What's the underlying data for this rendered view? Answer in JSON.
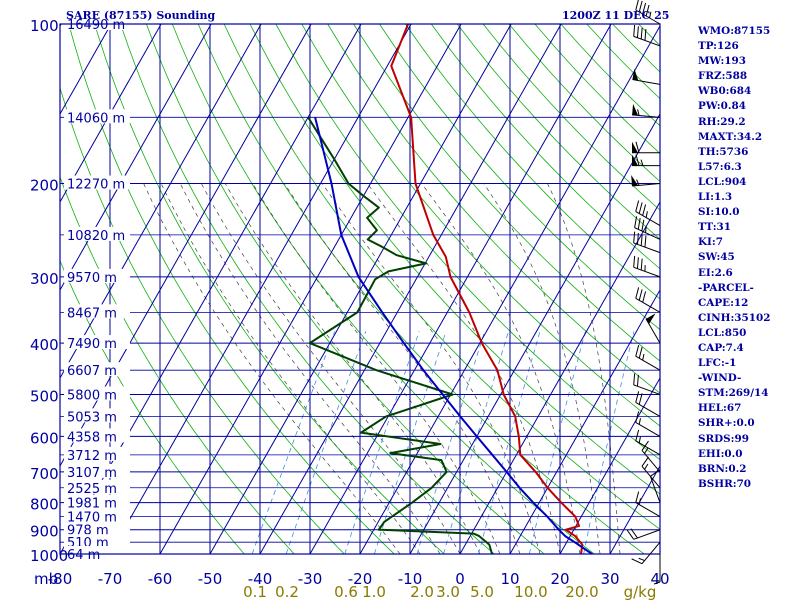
{
  "title_left": "SARE (87155) Sounding",
  "title_right": "1200Z 11 DEC 25",
  "chart_data": {
    "type": "line",
    "pressure_ticks": [
      100,
      200,
      300,
      400,
      500,
      600,
      700,
      800,
      900,
      1000
    ],
    "temperature_ticks": [
      -80,
      -70,
      -60,
      -50,
      -40,
      -30,
      -20,
      -10,
      0,
      10,
      20,
      30,
      40
    ],
    "temperature_tick_labels": [
      "-80",
      "-70",
      "-60",
      "-50",
      "-40",
      "-30",
      "-20",
      "-10",
      "0",
      "10",
      "20",
      "30",
      "40"
    ],
    "mixing_ratio_labels": [
      "0.1",
      "0.2",
      "0.6",
      "1.0",
      "2.0",
      "3.0",
      "5.0",
      "10.0",
      "20.0",
      "g/kg"
    ],
    "corner_label": "mb",
    "height_labels": [
      {
        "p": 100,
        "label": "16490 m"
      },
      {
        "p": 150,
        "label": "14060 m"
      },
      {
        "p": 200,
        "label": "12270 m"
      },
      {
        "p": 250,
        "label": "10820 m"
      },
      {
        "p": 300,
        "label": "9570 m"
      },
      {
        "p": 350,
        "label": "8467 m"
      },
      {
        "p": 400,
        "label": "7490 m"
      },
      {
        "p": 450,
        "label": "6607 m"
      },
      {
        "p": 500,
        "label": "5800 m"
      },
      {
        "p": 550,
        "label": "5053 m"
      },
      {
        "p": 600,
        "label": "4358 m"
      },
      {
        "p": 650,
        "label": "3712 m"
      },
      {
        "p": 700,
        "label": "3107 m"
      },
      {
        "p": 750,
        "label": "2525 m"
      },
      {
        "p": 800,
        "label": "1981 m"
      },
      {
        "p": 850,
        "label": "1470 m"
      },
      {
        "p": 900,
        "label": "978 m"
      },
      {
        "p": 950,
        "label": "510 m"
      },
      {
        "p": 1000,
        "label": "64 m"
      }
    ],
    "series": [
      {
        "name": "temperature",
        "color": "#c00000",
        "points": [
          {
            "p": 100,
            "t": -70.6
          },
          {
            "p": 120,
            "t": -69.2
          },
          {
            "p": 150,
            "t": -59.4
          },
          {
            "p": 200,
            "t": -51.0
          },
          {
            "p": 250,
            "t": -41.6
          },
          {
            "p": 275,
            "t": -36.6
          },
          {
            "p": 300,
            "t": -33.4
          },
          {
            "p": 350,
            "t": -25.6
          },
          {
            "p": 400,
            "t": -19.6
          },
          {
            "p": 450,
            "t": -13.4
          },
          {
            "p": 500,
            "t": -9.4
          },
          {
            "p": 550,
            "t": -4.6
          },
          {
            "p": 600,
            "t": -1.6
          },
          {
            "p": 650,
            "t": 0.8
          },
          {
            "p": 700,
            "t": 5.8
          },
          {
            "p": 750,
            "t": 10.0
          },
          {
            "p": 800,
            "t": 14.4
          },
          {
            "p": 850,
            "t": 18.8
          },
          {
            "p": 865,
            "t": 19.6
          },
          {
            "p": 885,
            "t": 20.6
          },
          {
            "p": 900,
            "t": 18.4
          },
          {
            "p": 925,
            "t": 21.0
          },
          {
            "p": 960,
            "t": 23.4
          },
          {
            "p": 1000,
            "t": 24.2
          }
        ]
      },
      {
        "name": "dewpoint",
        "color": "#004000",
        "points": [
          {
            "p": 150,
            "t": -80.0
          },
          {
            "p": 180,
            "t": -70.0
          },
          {
            "p": 200,
            "t": -64.4
          },
          {
            "p": 210,
            "t": -60.4
          },
          {
            "p": 222,
            "t": -55.6
          },
          {
            "p": 232,
            "t": -56.8
          },
          {
            "p": 245,
            "t": -53.4
          },
          {
            "p": 255,
            "t": -54.2
          },
          {
            "p": 263,
            "t": -50.6
          },
          {
            "p": 273,
            "t": -46.6
          },
          {
            "p": 283,
            "t": -39.8
          },
          {
            "p": 293,
            "t": -46.4
          },
          {
            "p": 303,
            "t": -48.2
          },
          {
            "p": 350,
            "t": -48.0
          },
          {
            "p": 400,
            "t": -54.0
          },
          {
            "p": 450,
            "t": -37.6
          },
          {
            "p": 500,
            "t": -19.6
          },
          {
            "p": 550,
            "t": -30.4
          },
          {
            "p": 590,
            "t": -33.6
          },
          {
            "p": 620,
            "t": -16.4
          },
          {
            "p": 645,
            "t": -25.4
          },
          {
            "p": 665,
            "t": -14.4
          },
          {
            "p": 700,
            "t": -12.0
          },
          {
            "p": 750,
            "t": -13.2
          },
          {
            "p": 800,
            "t": -15.4
          },
          {
            "p": 870,
            "t": -18.8
          },
          {
            "p": 900,
            "t": -19.0
          },
          {
            "p": 915,
            "t": 0.4
          },
          {
            "p": 925,
            "t": 1.8
          },
          {
            "p": 960,
            "t": 4.8
          },
          {
            "p": 1000,
            "t": 6.4
          }
        ]
      },
      {
        "name": "parcel",
        "color": "#0000c0",
        "points": [
          {
            "p": 1000,
            "t": 26.4
          },
          {
            "p": 950,
            "t": 21.6
          },
          {
            "p": 925,
            "t": 19.0
          },
          {
            "p": 900,
            "t": 17.0
          },
          {
            "p": 850,
            "t": 13.2
          },
          {
            "p": 800,
            "t": 8.8
          },
          {
            "p": 750,
            "t": 4.4
          },
          {
            "p": 700,
            "t": 0.0
          },
          {
            "p": 650,
            "t": -4.8
          },
          {
            "p": 600,
            "t": -10.0
          },
          {
            "p": 550,
            "t": -15.6
          },
          {
            "p": 500,
            "t": -21.6
          },
          {
            "p": 450,
            "t": -28.2
          },
          {
            "p": 400,
            "t": -35.2
          },
          {
            "p": 350,
            "t": -43.0
          },
          {
            "p": 300,
            "t": -51.8
          },
          {
            "p": 250,
            "t": -60.0
          },
          {
            "p": 200,
            "t": -67.8
          },
          {
            "p": 150,
            "t": -78.6
          }
        ]
      }
    ],
    "wind_barbs": [
      {
        "p": 100,
        "dir": 300,
        "kt": 45
      },
      {
        "p": 110,
        "dir": 290,
        "kt": 40
      },
      {
        "p": 130,
        "dir": 280,
        "kt": 50
      },
      {
        "p": 150,
        "dir": 275,
        "kt": 55
      },
      {
        "p": 175,
        "dir": 270,
        "kt": 60
      },
      {
        "p": 185,
        "dir": 270,
        "kt": 65
      },
      {
        "p": 200,
        "dir": 265,
        "kt": 55
      },
      {
        "p": 240,
        "dir": 300,
        "kt": 35
      },
      {
        "p": 255,
        "dir": 295,
        "kt": 35
      },
      {
        "p": 270,
        "dir": 290,
        "kt": 40
      },
      {
        "p": 300,
        "dir": 290,
        "kt": 35
      },
      {
        "p": 350,
        "dir": 300,
        "kt": 30
      },
      {
        "p": 400,
        "dir": 330,
        "kt": 50
      },
      {
        "p": 450,
        "dir": 300,
        "kt": 25
      },
      {
        "p": 500,
        "dir": 290,
        "kt": 20
      },
      {
        "p": 550,
        "dir": 300,
        "kt": 20
      },
      {
        "p": 600,
        "dir": 300,
        "kt": 15
      },
      {
        "p": 650,
        "dir": 300,
        "kt": 15
      },
      {
        "p": 700,
        "dir": 320,
        "kt": 15
      },
      {
        "p": 750,
        "dir": 320,
        "kt": 15
      },
      {
        "p": 800,
        "dir": 340,
        "kt": 10
      },
      {
        "p": 850,
        "dir": 300,
        "kt": 15
      },
      {
        "p": 900,
        "dir": 250,
        "kt": 20
      },
      {
        "p": 950,
        "dir": 220,
        "kt": 15
      },
      {
        "p": 1000,
        "dir": 180,
        "kt": 5
      }
    ],
    "xlim": [
      -80,
      40
    ],
    "ylim": [
      1000,
      100
    ],
    "y_scale": "log",
    "skew": "skew-T log-P",
    "grid": true
  },
  "indices": [
    "WMO:87155",
    "TP:126",
    "MW:193",
    "FRZ:588",
    "WB0:684",
    "PW:0.84",
    "RH:29.2",
    "MAXT:34.2",
    "TH:5736",
    "L57:6.3",
    "LCL:904",
    "LI:1.3",
    "SI:10.0",
    "TT:31",
    "KI:7",
    "SW:45",
    "EI:2.6",
    "-PARCEL-",
    "CAPE:12",
    "CINH:35102",
    "LCL:850",
    "CAP:7.4",
    "LFC:-1",
    "-WIND-",
    "STM:269/14",
    "HEL:67",
    "SHR+:0.0",
    "SRDS:99",
    "EHI:0.0",
    "BRN:0.2",
    "BSHR:70"
  ]
}
